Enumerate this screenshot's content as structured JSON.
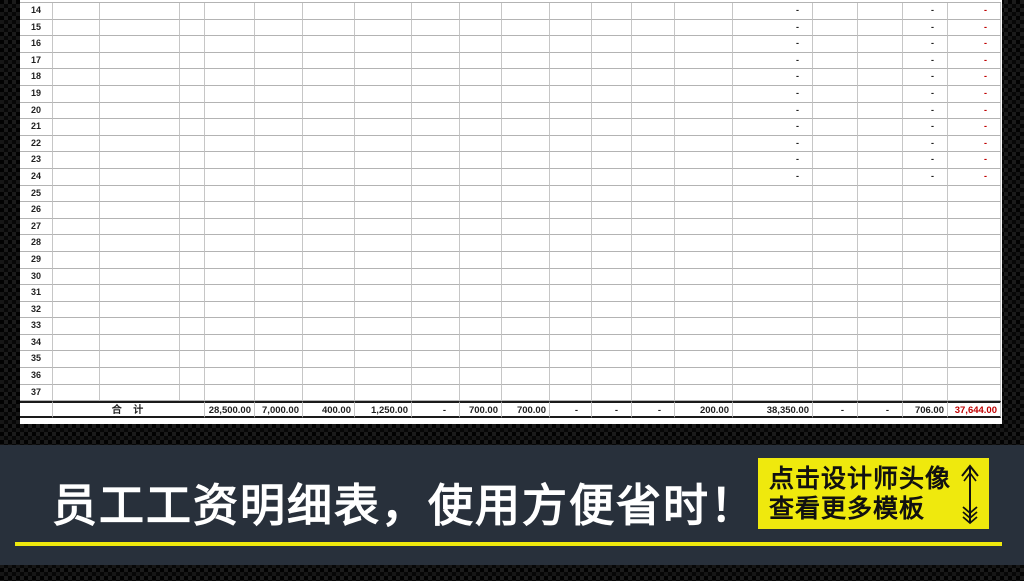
{
  "sheet": {
    "total_row_label": "合  计",
    "rows": [
      {
        "num": "14",
        "cells": [
          {
            "col": 14,
            "text": "-"
          },
          {
            "col": 17,
            "text": "-"
          },
          {
            "col": 18,
            "text": "-",
            "red": true
          }
        ]
      },
      {
        "num": "15",
        "cells": [
          {
            "col": 14,
            "text": "-"
          },
          {
            "col": 17,
            "text": "-"
          },
          {
            "col": 18,
            "text": "-",
            "red": true
          }
        ]
      },
      {
        "num": "16",
        "cells": [
          {
            "col": 14,
            "text": "-"
          },
          {
            "col": 17,
            "text": "-"
          },
          {
            "col": 18,
            "text": "-",
            "red": true
          }
        ]
      },
      {
        "num": "17",
        "cells": [
          {
            "col": 14,
            "text": "-"
          },
          {
            "col": 17,
            "text": "-"
          },
          {
            "col": 18,
            "text": "-",
            "red": true
          }
        ]
      },
      {
        "num": "18",
        "cells": [
          {
            "col": 14,
            "text": "-"
          },
          {
            "col": 17,
            "text": "-"
          },
          {
            "col": 18,
            "text": "-",
            "red": true
          }
        ]
      },
      {
        "num": "19",
        "cells": [
          {
            "col": 14,
            "text": "-"
          },
          {
            "col": 17,
            "text": "-"
          },
          {
            "col": 18,
            "text": "-",
            "red": true
          }
        ]
      },
      {
        "num": "20",
        "cells": [
          {
            "col": 14,
            "text": "-"
          },
          {
            "col": 17,
            "text": "-"
          },
          {
            "col": 18,
            "text": "-",
            "red": true
          }
        ]
      },
      {
        "num": "21",
        "cells": [
          {
            "col": 14,
            "text": "-"
          },
          {
            "col": 17,
            "text": "-"
          },
          {
            "col": 18,
            "text": "-",
            "red": true
          }
        ]
      },
      {
        "num": "22",
        "cells": [
          {
            "col": 14,
            "text": "-"
          },
          {
            "col": 17,
            "text": "-"
          },
          {
            "col": 18,
            "text": "-",
            "red": true
          }
        ]
      },
      {
        "num": "23",
        "cells": [
          {
            "col": 14,
            "text": "-"
          },
          {
            "col": 17,
            "text": "-"
          },
          {
            "col": 18,
            "text": "-",
            "red": true
          }
        ]
      },
      {
        "num": "24",
        "cells": [
          {
            "col": 14,
            "text": "-"
          },
          {
            "col": 17,
            "text": "-"
          },
          {
            "col": 18,
            "text": "-",
            "red": true
          }
        ]
      },
      {
        "num": "25",
        "cells": []
      },
      {
        "num": "26",
        "cells": []
      },
      {
        "num": "27",
        "cells": []
      },
      {
        "num": "28",
        "cells": []
      },
      {
        "num": "29",
        "cells": []
      },
      {
        "num": "30",
        "cells": []
      },
      {
        "num": "31",
        "cells": []
      },
      {
        "num": "32",
        "cells": []
      },
      {
        "num": "33",
        "cells": []
      },
      {
        "num": "34",
        "cells": []
      },
      {
        "num": "35",
        "cells": []
      },
      {
        "num": "36",
        "cells": []
      },
      {
        "num": "37",
        "cells": []
      }
    ],
    "total_values": [
      {
        "col": 3,
        "text": "28,500.00"
      },
      {
        "col": 4,
        "text": "7,000.00"
      },
      {
        "col": 5,
        "text": "400.00"
      },
      {
        "col": 6,
        "text": "1,250.00"
      },
      {
        "col": 7,
        "text": "-",
        "dash": true
      },
      {
        "col": 8,
        "text": "700.00"
      },
      {
        "col": 9,
        "text": "700.00"
      },
      {
        "col": 10,
        "text": "-",
        "dash": true
      },
      {
        "col": 11,
        "text": "-",
        "dash": true
      },
      {
        "col": 12,
        "text": "-",
        "dash": true
      },
      {
        "col": 13,
        "text": "200.00"
      },
      {
        "col": 14,
        "text": "38,350.00"
      },
      {
        "col": 15,
        "text": "-",
        "dash": true
      },
      {
        "col": 16,
        "text": "-",
        "dash": true
      },
      {
        "col": 17,
        "text": "706.00"
      },
      {
        "col": 18,
        "text": "37,644.00",
        "red": true
      }
    ]
  },
  "banner": {
    "title": "员工工资明细表，使用方便省时！",
    "promo": {
      "line1": "点击设计师头像",
      "line2": "查看更多模板",
      "arrow_icon": "up-arrow-icon"
    },
    "colors": {
      "banner_bg": "#28303b",
      "highlight_yellow": "#efe90d",
      "total_red": "#c00000"
    }
  }
}
